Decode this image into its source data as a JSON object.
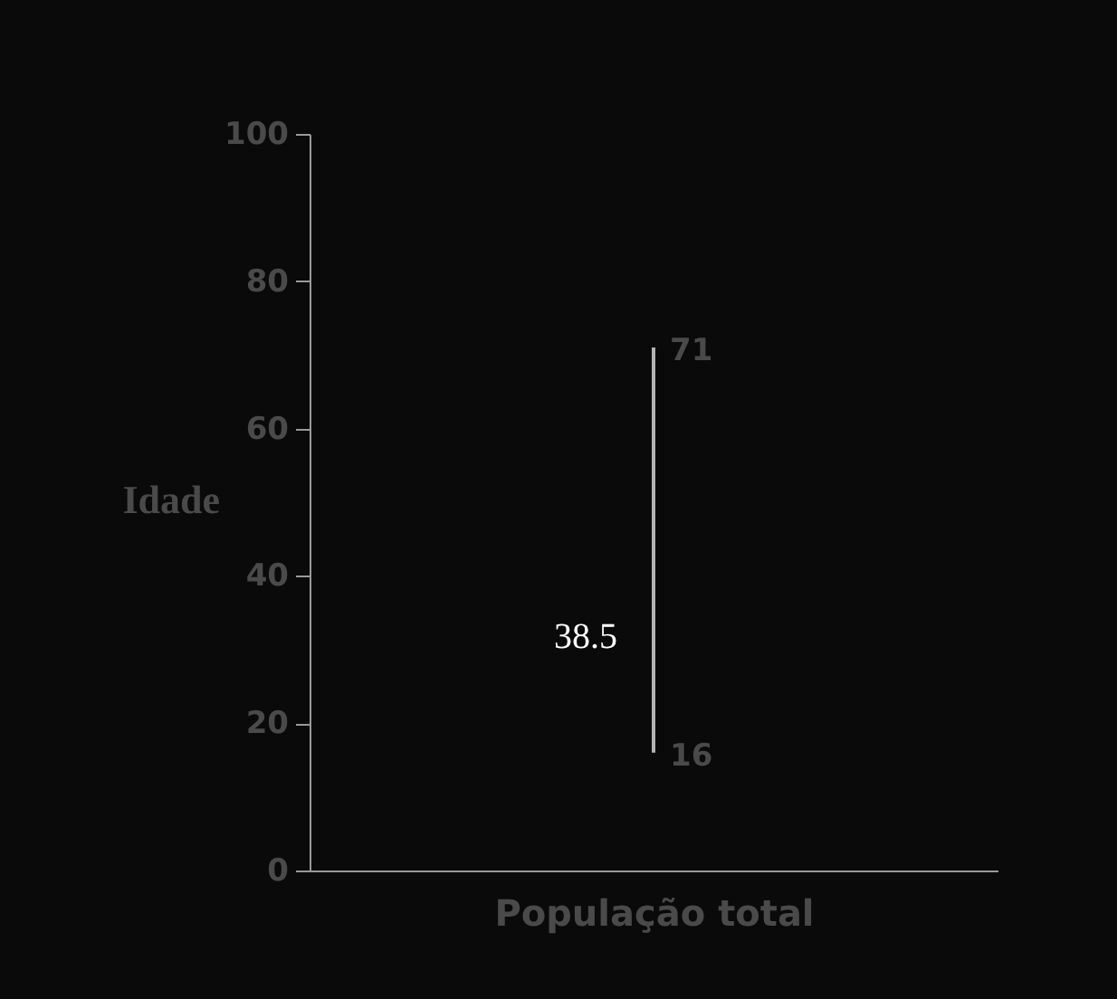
{
  "chart_data": {
    "type": "bar",
    "xlabel": "População total",
    "ylabel": "Idade",
    "categories": [
      null
    ],
    "base": [
      16
    ],
    "values": [
      55
    ],
    "color": "#b4b4b4",
    "ylim": [
      0,
      100
    ],
    "yticks": [
      0,
      20,
      40,
      60,
      80,
      100
    ],
    "grid": false,
    "annotations": [
      "71",
      "16",
      "38.5"
    ]
  }
}
